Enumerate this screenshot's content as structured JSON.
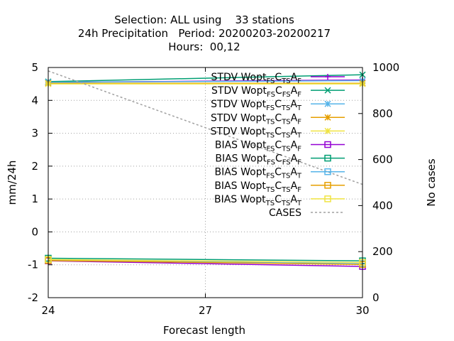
{
  "chart_data": {
    "type": "line",
    "title_lines": [
      "Selection: ALL using    33 stations",
      "24h Precipitation   Period: 20200203-20200217",
      "Hours:  00,12"
    ],
    "xlabel": "Forecast length",
    "ylabel": "mm/24h",
    "y2label": "No cases",
    "x_ticks": [
      "24",
      "27",
      "30"
    ],
    "y_ticks": [
      "-2",
      "-1",
      "0",
      "1",
      "2",
      "3",
      "4",
      "5"
    ],
    "y2_ticks": [
      "0",
      "200",
      "400",
      "600",
      "800",
      "1000"
    ],
    "xlim": [
      24,
      30
    ],
    "ylim": [
      -2,
      5
    ],
    "y2lim": [
      0,
      1000
    ],
    "grid": true,
    "legend_position": "top-right",
    "x": [
      24,
      30
    ],
    "series": [
      {
        "name": "STDV Wopt_FS C_TS A_F",
        "type": "STDV",
        "sub": [
          "FS",
          "TS",
          "F"
        ],
        "color": "#9400d3",
        "marker": "plus",
        "values": [
          4.55,
          4.62
        ]
      },
      {
        "name": "STDV Wopt_FS C_FS A_F",
        "type": "STDV",
        "sub": [
          "FS",
          "FS",
          "F"
        ],
        "color": "#009e73",
        "marker": "x",
        "values": [
          4.57,
          4.78
        ]
      },
      {
        "name": "STDV Wopt_FS C_TS A_T",
        "type": "STDV",
        "sub": [
          "FS",
          "TS",
          "T"
        ],
        "color": "#56b4e9",
        "marker": "star",
        "values": [
          4.55,
          4.6
        ]
      },
      {
        "name": "STDV Wopt_TS C_TS A_F",
        "type": "STDV",
        "sub": [
          "TS",
          "TS",
          "F"
        ],
        "color": "#e69f00",
        "marker": "star",
        "values": [
          4.52,
          4.52
        ]
      },
      {
        "name": "STDV Wopt_TS C_TS A_T",
        "type": "STDV",
        "sub": [
          "TS",
          "TS",
          "T"
        ],
        "color": "#f0e442",
        "marker": "star",
        "values": [
          4.5,
          4.5
        ]
      },
      {
        "name": "BIAS Wopt_FS C_TS A_F",
        "type": "BIAS",
        "sub": [
          "FS",
          "TS",
          "F"
        ],
        "color": "#9400d3",
        "marker": "square",
        "values": [
          -0.88,
          -1.05
        ]
      },
      {
        "name": "BIAS Wopt_FS C_FS A_F",
        "type": "BIAS",
        "sub": [
          "FS",
          "FS",
          "F"
        ],
        "color": "#009e73",
        "marker": "square",
        "values": [
          -0.8,
          -0.88
        ]
      },
      {
        "name": "BIAS Wopt_FS C_TS A_T",
        "type": "BIAS",
        "sub": [
          "FS",
          "TS",
          "T"
        ],
        "color": "#56b4e9",
        "marker": "square",
        "values": [
          -0.85,
          -0.97
        ]
      },
      {
        "name": "BIAS Wopt_TS C_TS A_F",
        "type": "BIAS",
        "sub": [
          "TS",
          "TS",
          "F"
        ],
        "color": "#e69f00",
        "marker": "square",
        "values": [
          -0.87,
          -0.99
        ]
      },
      {
        "name": "BIAS Wopt_TS C_TS A_T",
        "type": "BIAS",
        "sub": [
          "TS",
          "TS",
          "T"
        ],
        "color": "#f0e442",
        "marker": "square",
        "values": [
          -0.84,
          -0.93
        ]
      },
      {
        "name": "CASES",
        "type": "CASES",
        "sub": [],
        "color": "#a0a0a0",
        "marker": "none",
        "axis": "y2",
        "values": [
          985,
          492
        ]
      }
    ]
  }
}
